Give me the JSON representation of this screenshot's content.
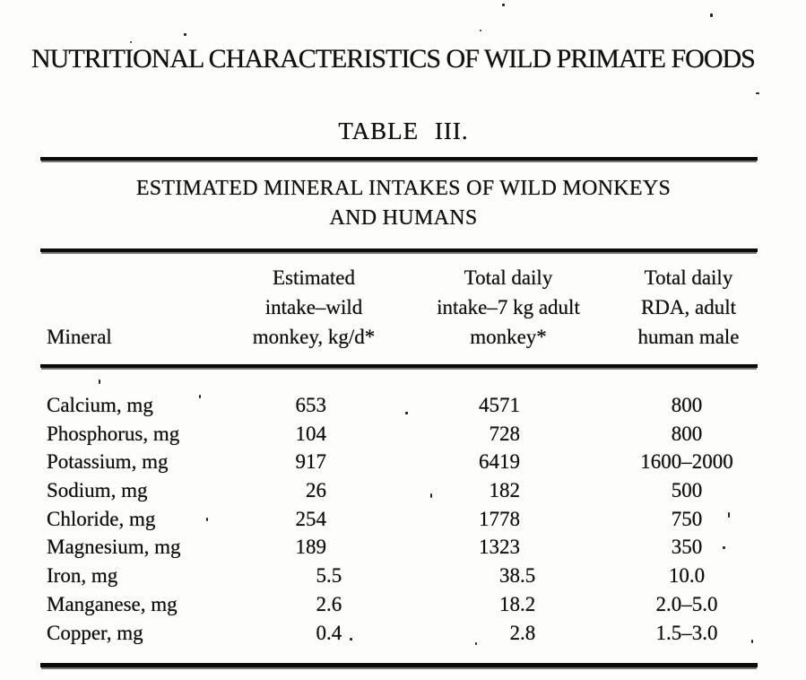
{
  "page": {
    "header_title": "NUTRITIONAL CHARACTERISTICS OF WILD PRIMATE FOODS",
    "table_caption": "TABLE III.",
    "table_subtitle_lines": [
      "ESTIMATED MINERAL INTAKES OF WILD MONKEYS",
      "AND HUMANS"
    ]
  },
  "table": {
    "columns": [
      {
        "lines": [
          "Mineral"
        ]
      },
      {
        "lines": [
          "Estimated",
          "intake–wild",
          "monkey, kg/d*"
        ]
      },
      {
        "lines": [
          "Total daily",
          "intake–7 kg adult",
          "monkey*"
        ]
      },
      {
        "lines": [
          "Total daily",
          "RDA, adult",
          "human male"
        ]
      }
    ],
    "rows": [
      {
        "mineral": "Calcium, mg",
        "wild_intake": "653",
        "total_daily_intake": "4571",
        "rda": "800"
      },
      {
        "mineral": "Phosphorus, mg",
        "wild_intake": "104",
        "total_daily_intake": "728",
        "rda": "800"
      },
      {
        "mineral": "Potassium, mg",
        "wild_intake": "917",
        "total_daily_intake": "6419",
        "rda": "1600–2000"
      },
      {
        "mineral": "Sodium, mg",
        "wild_intake": "26",
        "total_daily_intake": "182",
        "rda": "500"
      },
      {
        "mineral": "Chloride, mg",
        "wild_intake": "254",
        "total_daily_intake": "1778",
        "rda": "750"
      },
      {
        "mineral": "Magnesium, mg",
        "wild_intake": "189",
        "total_daily_intake": "1323",
        "rda": "350"
      },
      {
        "mineral": "Iron, mg",
        "wild_intake": "5.5",
        "total_daily_intake": "38.5",
        "rda": "10.0"
      },
      {
        "mineral": "Manganese, mg",
        "wild_intake": "2.6",
        "total_daily_intake": "18.2",
        "rda": "2.0–5.0"
      },
      {
        "mineral": "Copper, mg",
        "wild_intake": "0.4",
        "total_daily_intake": "2.8",
        "rda": "1.5–3.0"
      }
    ]
  }
}
